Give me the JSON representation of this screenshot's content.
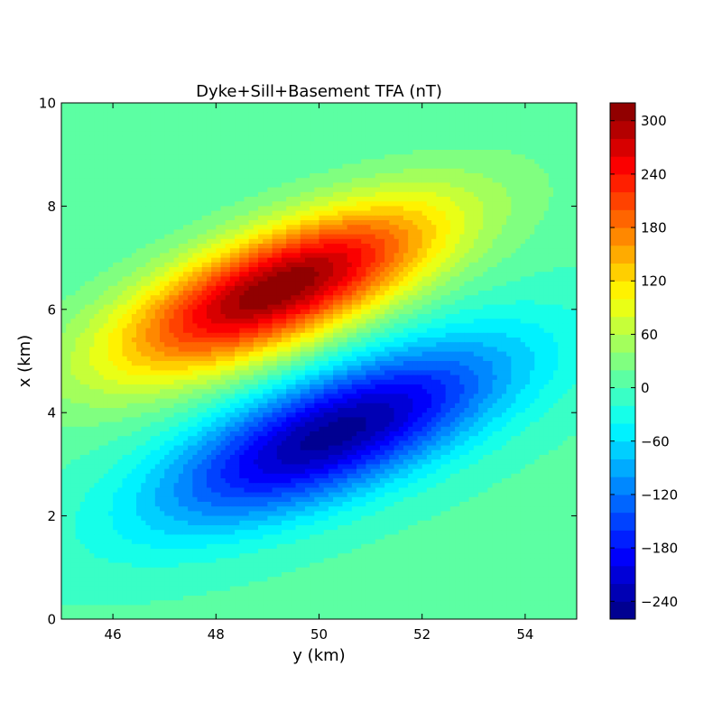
{
  "chart_data": {
    "type": "heatmap",
    "subtype": "filled-contour",
    "title": "Dyke+Sill+Basement TFA (nT)",
    "xlabel": "y (km)",
    "ylabel": "x (km)",
    "xlim": [
      45,
      55
    ],
    "ylim": [
      0,
      10
    ],
    "xticks": [
      46,
      48,
      50,
      52,
      54
    ],
    "xtick_labels": [
      "46",
      "48",
      "50",
      "52",
      "54"
    ],
    "yticks": [
      0,
      2,
      4,
      6,
      8,
      10
    ],
    "ytick_labels": [
      "0",
      "2",
      "4",
      "6",
      "8",
      "10"
    ],
    "colormap": "jet",
    "colorbar": {
      "vmin": -260,
      "vmax": 320,
      "levels": [
        -260,
        -240,
        -220,
        -200,
        -180,
        -160,
        -140,
        -120,
        -100,
        -80,
        -60,
        -40,
        -20,
        0,
        20,
        40,
        60,
        80,
        100,
        120,
        140,
        160,
        180,
        200,
        220,
        240,
        260,
        280,
        300,
        320
      ],
      "ticks": [
        -240,
        -180,
        -120,
        -60,
        0,
        60,
        120,
        180,
        240,
        300
      ],
      "tick_labels": [
        "−240",
        "−180",
        "−120",
        "−60",
        "0",
        "60",
        "120",
        "180",
        "240",
        "300"
      ]
    },
    "anomalies": [
      {
        "kind": "positive-lobe",
        "center": [
          49.2,
          6.4
        ],
        "peak_nT": 315,
        "orientation_deg": 22,
        "semi_axes_km": [
          2.3,
          0.75
        ]
      },
      {
        "kind": "negative-lobe",
        "center": [
          50.3,
          3.6
        ],
        "peak_nT": -255,
        "orientation_deg": 22,
        "semi_axes_km": [
          2.5,
          0.8
        ]
      }
    ],
    "background_nT": 5,
    "grid": false
  }
}
